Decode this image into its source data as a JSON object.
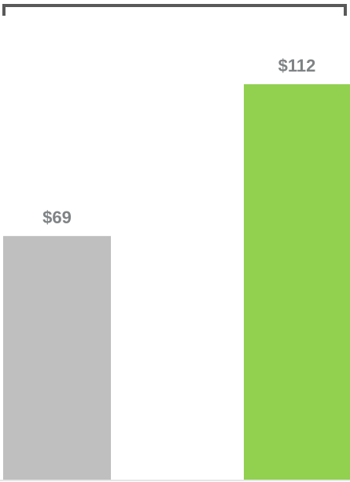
{
  "chart_data": {
    "type": "bar",
    "values": [
      69,
      112
    ],
    "value_labels": [
      "$69",
      "$112"
    ],
    "colors": [
      "#bfbfbf",
      "#92d050"
    ]
  }
}
